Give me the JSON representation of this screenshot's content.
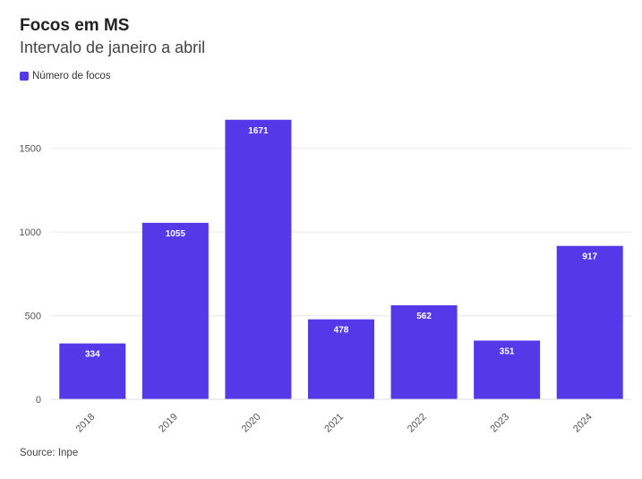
{
  "chart_data": {
    "type": "bar",
    "title": "Focos em MS",
    "subtitle": "Intervalo de janeiro a abril",
    "categories": [
      "2018",
      "2019",
      "2020",
      "2021",
      "2022",
      "2023",
      "2024"
    ],
    "series": [
      {
        "name": "Número de focos",
        "values": [
          334,
          1055,
          1671,
          478,
          562,
          351,
          917
        ],
        "color": "#5538e8"
      }
    ],
    "yticks": [
      0,
      500,
      1000,
      1500
    ],
    "ylim": [
      0,
      1750
    ],
    "grid": true,
    "legend_position": "top-left",
    "source": "Source: Inpe"
  }
}
